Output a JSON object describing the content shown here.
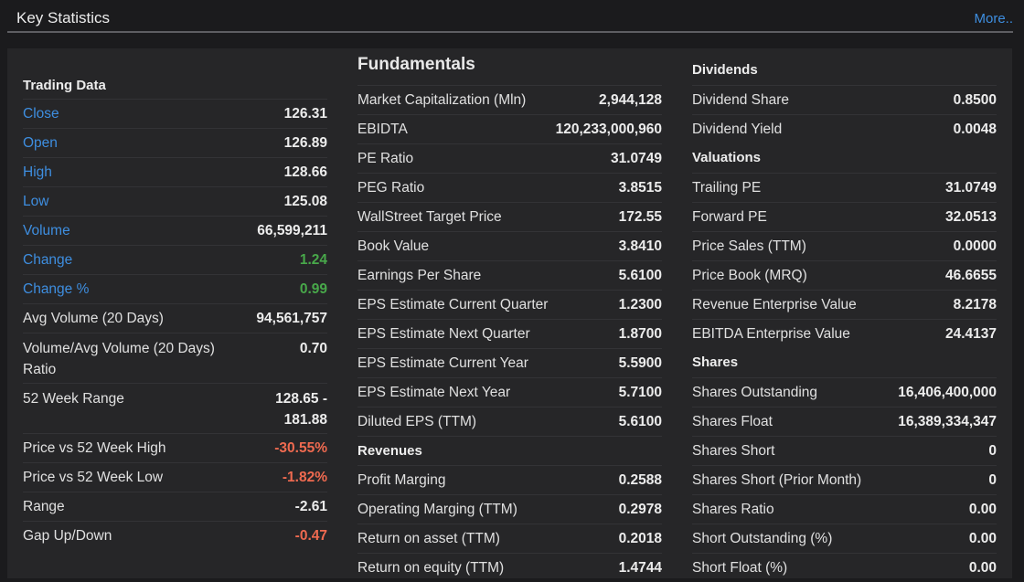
{
  "header": {
    "title": "Key Statistics",
    "more": "More.."
  },
  "trading": {
    "title": "Trading Data",
    "rows": [
      {
        "label": "Close",
        "value": "126.31",
        "link": true
      },
      {
        "label": "Open",
        "value": "126.89",
        "link": true
      },
      {
        "label": "High",
        "value": "128.66",
        "link": true
      },
      {
        "label": "Low",
        "value": "125.08",
        "link": true
      },
      {
        "label": "Volume",
        "value": "66,599,211",
        "link": true
      },
      {
        "label": "Change",
        "value": "1.24",
        "link": true,
        "color": "pos"
      },
      {
        "label": "Change %",
        "value": "0.99",
        "link": true,
        "color": "pos"
      },
      {
        "label": "Avg Volume (20 Days)",
        "value": "94,561,757"
      },
      {
        "label": "Volume/Avg Volume (20 Days) Ratio",
        "value": "0.70"
      },
      {
        "label": "52 Week Range",
        "value": "128.65 - 181.88"
      },
      {
        "label": "Price vs 52 Week High",
        "value": "-30.55%",
        "color": "neg"
      },
      {
        "label": "Price vs 52 Week Low",
        "value": "-1.82%",
        "color": "neg"
      },
      {
        "label": "Range",
        "value": "-2.61"
      },
      {
        "label": "Gap Up/Down",
        "value": "-0.47",
        "color": "neg"
      }
    ]
  },
  "fundamentals": {
    "title": "Fundamentals",
    "rows": [
      {
        "label": "Market Capitalization (Mln)",
        "value": "2,944,128"
      },
      {
        "label": "EBIDTA",
        "value": "120,233,000,960"
      },
      {
        "label": "PE Ratio",
        "value": "31.0749"
      },
      {
        "label": "PEG Ratio",
        "value": "3.8515"
      },
      {
        "label": "WallStreet Target Price",
        "value": "172.55"
      },
      {
        "label": "Book Value",
        "value": "3.8410"
      },
      {
        "label": "Earnings Per Share",
        "value": "5.6100"
      },
      {
        "label": "EPS Estimate Current Quarter",
        "value": "1.2300"
      },
      {
        "label": "EPS Estimate Next Quarter",
        "value": "1.8700"
      },
      {
        "label": "EPS Estimate Current Year",
        "value": "5.5900"
      },
      {
        "label": "EPS Estimate Next Year",
        "value": "5.7100"
      },
      {
        "label": "Diluted EPS (TTM)",
        "value": "5.6100"
      }
    ],
    "revenues_title": "Revenues",
    "revenues": [
      {
        "label": "Profit Marging",
        "value": "0.2588"
      },
      {
        "label": "Operating Marging (TTM)",
        "value": "0.2978"
      },
      {
        "label": "Return on asset (TTM)",
        "value": "0.2018"
      },
      {
        "label": "Return on equity (TTM)",
        "value": "1.4744"
      }
    ]
  },
  "dividends": {
    "title": "Dividends",
    "rows": [
      {
        "label": "Dividend Share",
        "value": "0.8500"
      },
      {
        "label": "Dividend Yield",
        "value": "0.0048"
      }
    ]
  },
  "valuations": {
    "title": "Valuations",
    "rows": [
      {
        "label": "Trailing PE",
        "value": "31.0749"
      },
      {
        "label": "Forward PE",
        "value": "32.0513"
      },
      {
        "label": "Price Sales (TTM)",
        "value": "0.0000"
      },
      {
        "label": "Price Book (MRQ)",
        "value": "46.6655"
      },
      {
        "label": "Revenue Enterprise Value",
        "value": "8.2178"
      },
      {
        "label": "EBITDA Enterprise Value",
        "value": "24.4137"
      }
    ]
  },
  "shares": {
    "title": "Shares",
    "rows": [
      {
        "label": "Shares Outstanding",
        "value": "16,406,400,000"
      },
      {
        "label": "Shares Float",
        "value": "16,389,334,347"
      },
      {
        "label": "Shares Short",
        "value": "0"
      },
      {
        "label": "Shares Short (Prior Month)",
        "value": "0"
      },
      {
        "label": "Shares Ratio",
        "value": "0.00"
      },
      {
        "label": "Short Outstanding (%)",
        "value": "0.00"
      },
      {
        "label": "Short Float (%)",
        "value": "0.00"
      }
    ]
  }
}
